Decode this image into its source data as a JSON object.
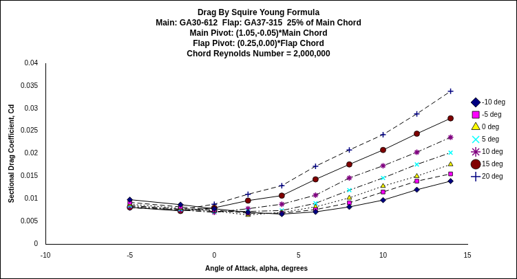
{
  "chart_data": {
    "type": "line",
    "title": [
      "Drag By Squire Young Formula",
      "Main: GA30-612  Flap: GA37-315  25% of Main Chord",
      "Main Pivot: (1.05,-0.05)*Main Chord",
      "Flap Pivot: (0.25,0.00)*Flap Chord",
      "Chord Reynolds Number = 2,000,000"
    ],
    "x_label": "Angle of Attack, alpha, degrees",
    "y_label": "Sectional Drag Coefficient, Cd",
    "x": [
      -5,
      -2,
      0,
      2,
      4,
      6,
      8,
      10,
      12,
      14
    ],
    "series": [
      {
        "name": "-10 deg",
        "color": "#000080",
        "marker": "diamond",
        "line_style": "solid",
        "values": [
          0.0098,
          0.0087,
          0.0078,
          0.007,
          0.0066,
          0.0071,
          0.0082,
          0.0097,
          0.012,
          0.0139
        ]
      },
      {
        "name": "-5 deg",
        "color": "#ff00ff",
        "marker": "square",
        "line_style": "dashed",
        "values": [
          0.0092,
          0.0082,
          0.0075,
          0.0068,
          0.0068,
          0.0076,
          0.0091,
          0.0115,
          0.0139,
          0.0155
        ]
      },
      {
        "name": "0 deg",
        "color": "#ffff00",
        "marker": "triangle",
        "line_style": "dotted",
        "values": [
          0.0088,
          0.0079,
          0.0073,
          0.0064,
          0.007,
          0.0082,
          0.0102,
          0.0128,
          0.015,
          0.0176
        ]
      },
      {
        "name": "5 deg",
        "color": "#00ffff",
        "marker": "x",
        "line_style": "dashdot",
        "values": [
          0.0085,
          0.0077,
          0.0072,
          0.0072,
          0.0074,
          0.009,
          0.0119,
          0.0146,
          0.0176,
          0.0202
        ]
      },
      {
        "name": "10 deg",
        "color": "#800080",
        "marker": "star",
        "line_style": "dashdot",
        "values": [
          0.0083,
          0.0075,
          0.007,
          0.0078,
          0.0088,
          0.0108,
          0.0146,
          0.0173,
          0.0203,
          0.0236
        ]
      },
      {
        "name": "15 deg",
        "color": "#800000",
        "marker": "circle",
        "line_style": "solid",
        "values": [
          0.0081,
          0.0073,
          0.008,
          0.0096,
          0.0107,
          0.0143,
          0.0176,
          0.0208,
          0.0244,
          0.0278
        ]
      },
      {
        "name": "20 deg",
        "color": "#000080",
        "marker": "plus",
        "line_style": "dashed",
        "values": [
          0.008,
          0.0076,
          0.0088,
          0.011,
          0.0129,
          0.0172,
          0.0208,
          0.0242,
          0.0288,
          0.0338
        ]
      }
    ],
    "xlim": [
      -10,
      15
    ],
    "xticks": [
      -10,
      -5,
      0,
      5,
      10,
      15
    ],
    "ylim": [
      0,
      0.04
    ],
    "yticks": [
      0,
      0.005,
      0.01,
      0.015,
      0.02,
      0.025,
      0.03,
      0.035,
      0.04
    ],
    "grid": false,
    "legend": "right"
  }
}
